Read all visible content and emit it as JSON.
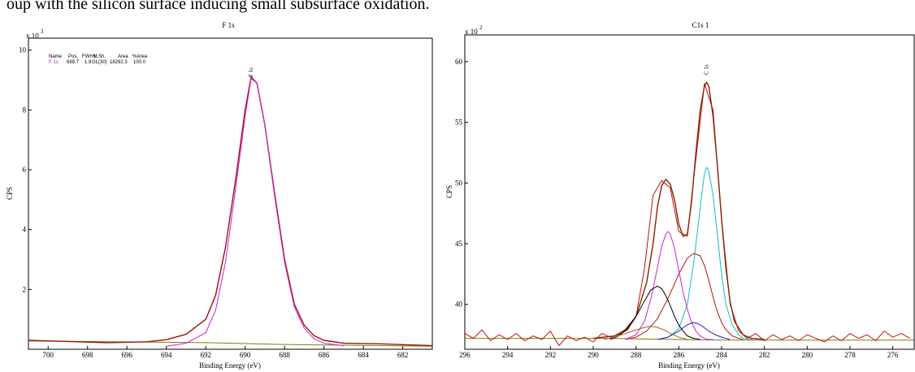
{
  "caption": "oup with the silicon surface inducing small subsurface oxidation.",
  "colors": {
    "envelope": "#a01010",
    "magenta": "#d020d0",
    "cyan": "#10c0c0",
    "black": "#000000",
    "blue": "#2020c0",
    "brown": "#a06030",
    "background_line": "#808000"
  },
  "chart_data": [
    {
      "type": "line",
      "title": "F 1s",
      "xlabel": "Binding Energy (eV)",
      "ylabel": "CPS",
      "multiplier": "x 10",
      "multiplier_exp": "3",
      "xlim": [
        701,
        680.5
      ],
      "ylim": [
        0,
        10.4
      ],
      "x_ticks": [
        700,
        698,
        696,
        694,
        692,
        690,
        688,
        686,
        684,
        682
      ],
      "y_ticks": [
        2,
        4,
        6,
        8,
        10
      ],
      "peak_label": "F 1s",
      "peak_label_x": 689.7,
      "legend": {
        "headers": [
          "Name",
          "Pos.",
          "FWHM",
          "L.Sh.",
          "Area",
          "%Area"
        ],
        "rows": [
          [
            "F 1s",
            "689.7",
            "1.9",
            "GL(30)",
            "18292.3",
            "100.0"
          ]
        ]
      },
      "background": {
        "x": [
          701,
          692,
          688,
          680.5
        ],
        "y": [
          0.28,
          0.22,
          0.16,
          0.1
        ]
      },
      "series": [
        {
          "role": "envelope",
          "color": "#a01010",
          "x": [
            701,
            699,
            697,
            695,
            694,
            693,
            692,
            691.5,
            691,
            690.5,
            690,
            689.7,
            689.4,
            689,
            688.5,
            688,
            687.5,
            687,
            686.5,
            686,
            685,
            683,
            680.5
          ],
          "y": [
            0.3,
            0.26,
            0.22,
            0.25,
            0.32,
            0.5,
            1.0,
            1.8,
            3.4,
            5.6,
            8.0,
            9.1,
            8.9,
            7.5,
            5.2,
            3.0,
            1.5,
            0.8,
            0.45,
            0.3,
            0.2,
            0.18,
            0.12
          ]
        },
        {
          "role": "component",
          "color": "#d020d0",
          "x": [
            694,
            693,
            692,
            691.5,
            691,
            690.5,
            690,
            689.7,
            689.4,
            689,
            688.5,
            688,
            687.5,
            687,
            686.5,
            686,
            685
          ],
          "y": [
            0.1,
            0.2,
            0.55,
            1.3,
            2.9,
            5.3,
            7.8,
            9.05,
            8.9,
            7.5,
            5.1,
            2.9,
            1.4,
            0.7,
            0.35,
            0.2,
            0.12
          ]
        }
      ]
    },
    {
      "type": "line",
      "title": "C1s 1",
      "xlabel": "Binding Energy (eV)",
      "ylabel": "CPS",
      "multiplier": "x 10",
      "multiplier_exp": "2",
      "xlim": [
        296,
        275
      ],
      "ylim": [
        36.3,
        62.2
      ],
      "x_ticks": [
        296,
        294,
        292,
        290,
        288,
        286,
        284,
        282,
        280,
        278,
        276
      ],
      "y_ticks": [
        40,
        45,
        50,
        55,
        60
      ],
      "peak_label": "C 1s",
      "peak_label_x": 284.7,
      "background": {
        "x": [
          296,
          289,
          288,
          286,
          284,
          283,
          275
        ],
        "y": [
          37.2,
          37.2,
          37.15,
          37.1,
          37.05,
          37.05,
          37.05
        ]
      },
      "series": [
        {
          "role": "raw",
          "color": "#c01010",
          "x": [
            296,
            295.6,
            295.2,
            294.8,
            294.4,
            294,
            293.6,
            293.2,
            292.8,
            292.4,
            292,
            291.6,
            291.2,
            290.8,
            290.4,
            290,
            289.6,
            289.2,
            288.8,
            288.4,
            288,
            287.6,
            287.2,
            286.8,
            286.4,
            286,
            285.6,
            285.2,
            284.8,
            284.4,
            284,
            283.6,
            283.2,
            282.8,
            282.4,
            282,
            281.6,
            281.2,
            280.8,
            280.4,
            280,
            279.6,
            279.2,
            278.8,
            278.4,
            278,
            277.6,
            277.2,
            276.8,
            276.4,
            276,
            275.6,
            275.2
          ],
          "y": [
            37.6,
            37.2,
            37.9,
            37.0,
            37.5,
            37.1,
            37.6,
            37.0,
            37.4,
            37.1,
            37.8,
            36.6,
            37.4,
            37.0,
            37.3,
            36.9,
            37.6,
            37.3,
            37.5,
            37.9,
            39.0,
            43.0,
            49.0,
            50.2,
            49.6,
            46.0,
            45.6,
            52.0,
            58.2,
            56.0,
            47.0,
            40.0,
            37.8,
            37.2,
            37.6,
            37.0,
            37.5,
            37.1,
            37.4,
            37.0,
            37.5,
            37.2,
            36.9,
            37.4,
            37.0,
            37.6,
            37.2,
            37.5,
            37.0,
            37.8,
            37.3,
            37.6,
            37.2
          ]
        },
        {
          "role": "envelope",
          "color": "#8b2000",
          "x": [
            290,
            289,
            288.5,
            288,
            287.5,
            287.2,
            287,
            286.8,
            286.6,
            286.4,
            286.2,
            286,
            285.8,
            285.6,
            285.4,
            285.2,
            285,
            284.8,
            284.7,
            284.6,
            284.4,
            284.2,
            284,
            283.8,
            283.6,
            283.4,
            283,
            282.6,
            282
          ],
          "y": [
            37.2,
            37.4,
            37.9,
            39.0,
            41.8,
            45.0,
            48.0,
            49.8,
            50.3,
            49.9,
            48.6,
            46.6,
            45.6,
            45.8,
            48.5,
            52.5,
            56.0,
            58.0,
            58.3,
            58.0,
            55.5,
            51.5,
            47.0,
            43.0,
            40.2,
            38.6,
            37.5,
            37.2,
            37.1
          ]
        },
        {
          "role": "component",
          "color": "#10c0c0",
          "x": [
            287,
            286.5,
            286,
            285.6,
            285.3,
            285,
            284.8,
            284.7,
            284.6,
            284.4,
            284.2,
            284,
            283.8,
            283.5,
            283.2,
            283,
            282.6
          ],
          "y": [
            37.1,
            37.3,
            38.0,
            40.0,
            43.5,
            48.0,
            50.8,
            51.3,
            51.0,
            49.0,
            45.8,
            42.5,
            40.0,
            38.3,
            37.5,
            37.2,
            37.1
          ]
        },
        {
          "role": "component",
          "color": "#c01010",
          "x": [
            288.5,
            288,
            287.5,
            287,
            286.5,
            286,
            285.6,
            285.3,
            285,
            284.8,
            284.6,
            284.4,
            284.2,
            284,
            283.8,
            283.5,
            283.2,
            283
          ],
          "y": [
            37.1,
            37.3,
            37.8,
            38.8,
            40.5,
            42.5,
            43.8,
            44.2,
            44.0,
            43.2,
            42.0,
            40.6,
            39.4,
            38.5,
            37.9,
            37.4,
            37.2,
            37.1
          ]
        },
        {
          "role": "component",
          "color": "#d020d0",
          "x": [
            288.5,
            288,
            287.6,
            287.3,
            287,
            286.8,
            286.6,
            286.5,
            286.4,
            286.2,
            286,
            285.8,
            285.6,
            285.4,
            285.2,
            285,
            284.8,
            284.6,
            284.4
          ],
          "y": [
            37.1,
            37.5,
            38.6,
            40.5,
            43.0,
            44.8,
            45.8,
            46.0,
            45.8,
            44.6,
            42.8,
            41.0,
            39.6,
            38.5,
            37.8,
            37.4,
            37.2,
            37.1,
            37.1
          ]
        },
        {
          "role": "component",
          "color": "#000000",
          "x": [
            289.2,
            288.8,
            288.4,
            288,
            287.6,
            287.3,
            287,
            286.8,
            286.6,
            286.4,
            286.2,
            286,
            285.8,
            285.6,
            285.3,
            285
          ],
          "y": [
            37.1,
            37.4,
            38.0,
            39.0,
            40.3,
            41.2,
            41.5,
            41.3,
            40.7,
            39.9,
            39.0,
            38.3,
            37.8,
            37.4,
            37.2,
            37.1
          ]
        },
        {
          "role": "component",
          "color": "#2020c0",
          "x": [
            287,
            286.5,
            286,
            285.7,
            285.5,
            285.3,
            285.1,
            284.9,
            284.6,
            284.3,
            284,
            283.6
          ],
          "y": [
            37.1,
            37.3,
            37.8,
            38.2,
            38.4,
            38.5,
            38.4,
            38.2,
            37.8,
            37.5,
            37.3,
            37.1
          ]
        },
        {
          "role": "component",
          "color": "#a06030",
          "x": [
            289.5,
            289,
            288.5,
            288,
            287.6,
            287.3,
            287,
            286.7,
            286.4,
            286,
            285.6
          ],
          "y": [
            37.1,
            37.3,
            37.6,
            37.9,
            38.1,
            38.2,
            38.1,
            37.9,
            37.6,
            37.3,
            37.1
          ]
        }
      ]
    }
  ]
}
